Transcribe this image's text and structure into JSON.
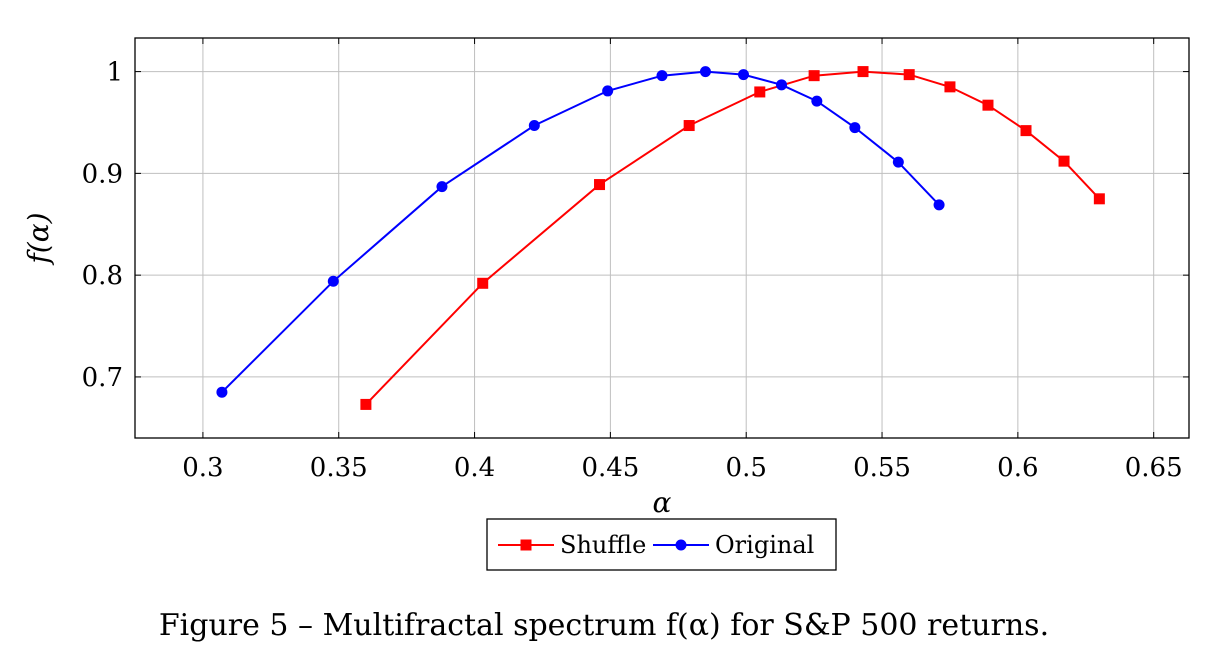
{
  "chart_data": {
    "type": "line",
    "xlabel": "α",
    "ylabel": "f(α)",
    "xlim": [
      0.275,
      0.663
    ],
    "ylim": [
      0.64,
      1.033
    ],
    "xticks": [
      "0.3",
      "0.35",
      "0.4",
      "0.45",
      "0.5",
      "0.55",
      "0.6",
      "0.65"
    ],
    "xtick_values": [
      0.3,
      0.35,
      0.4,
      0.45,
      0.5,
      0.55,
      0.6,
      0.65
    ],
    "yticks": [
      "0.7",
      "0.8",
      "0.9",
      "1"
    ],
    "ytick_values": [
      0.7,
      0.8,
      0.9,
      1.0
    ],
    "grid": true,
    "legend_position": "bottom-center",
    "series": [
      {
        "name": "Shuffle",
        "color": "#ff0000",
        "marker": "square",
        "x": [
          0.36,
          0.403,
          0.446,
          0.479,
          0.505,
          0.525,
          0.543,
          0.56,
          0.575,
          0.589,
          0.603,
          0.617,
          0.63
        ],
        "y": [
          0.673,
          0.792,
          0.889,
          0.947,
          0.98,
          0.996,
          1.0,
          0.997,
          0.985,
          0.967,
          0.942,
          0.912,
          0.875
        ]
      },
      {
        "name": "Original",
        "color": "#0000ff",
        "marker": "circle",
        "x": [
          0.307,
          0.348,
          0.388,
          0.422,
          0.449,
          0.469,
          0.485,
          0.499,
          0.513,
          0.526,
          0.54,
          0.556,
          0.571
        ],
        "y": [
          0.685,
          0.794,
          0.887,
          0.947,
          0.981,
          0.996,
          1.0,
          0.997,
          0.987,
          0.971,
          0.945,
          0.911,
          0.869
        ]
      }
    ]
  },
  "caption": "Figure 5 – Multifractal spectrum f(α) for S&P 500 returns."
}
